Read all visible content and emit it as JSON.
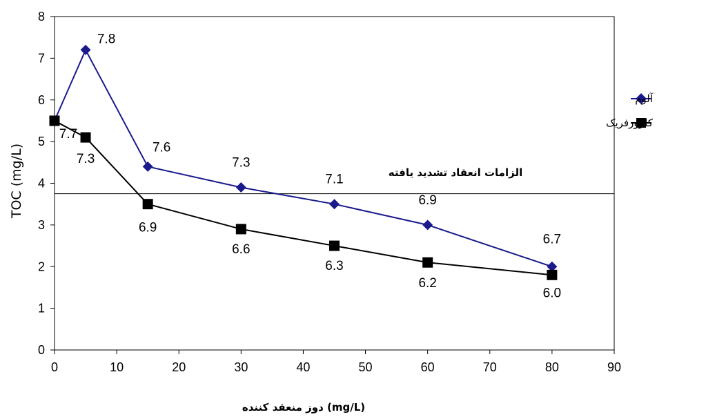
{
  "chart_data": {
    "type": "line",
    "xlabel": "(mg/L) دوز منعقد کننده",
    "ylabel": "TOC (mg/L)",
    "xlim": [
      0,
      90
    ],
    "ylim": [
      0,
      8
    ],
    "x_ticks": [
      0,
      10,
      20,
      30,
      40,
      50,
      60,
      70,
      80,
      90
    ],
    "y_ticks": [
      0,
      1,
      2,
      3,
      4,
      5,
      6,
      7,
      8
    ],
    "grid": false,
    "legend_position": "right",
    "reference_line": {
      "y": 3.75,
      "label": "الزامات انعقاد تشدید یافته"
    },
    "series": [
      {
        "name": "آلوم",
        "color": "#1a1a8c",
        "marker": "diamond",
        "x": [
          0,
          5,
          15,
          30,
          45,
          60,
          80
        ],
        "y": [
          5.5,
          7.2,
          4.4,
          3.9,
          3.5,
          3.0,
          2.0
        ],
        "labels": [
          "7.7",
          "7.8",
          "7.6",
          "7.3",
          "7.1",
          "6.9",
          "6.7"
        ]
      },
      {
        "name": "کلرورفریک",
        "color": "#000000",
        "marker": "square",
        "x": [
          0,
          5,
          15,
          30,
          45,
          60,
          80
        ],
        "y": [
          5.5,
          5.1,
          3.5,
          2.9,
          2.5,
          2.1,
          1.8
        ],
        "labels": [
          "",
          "7.3",
          "6.9",
          "6.6",
          "6.3",
          "6.2",
          "6.0"
        ]
      }
    ]
  }
}
